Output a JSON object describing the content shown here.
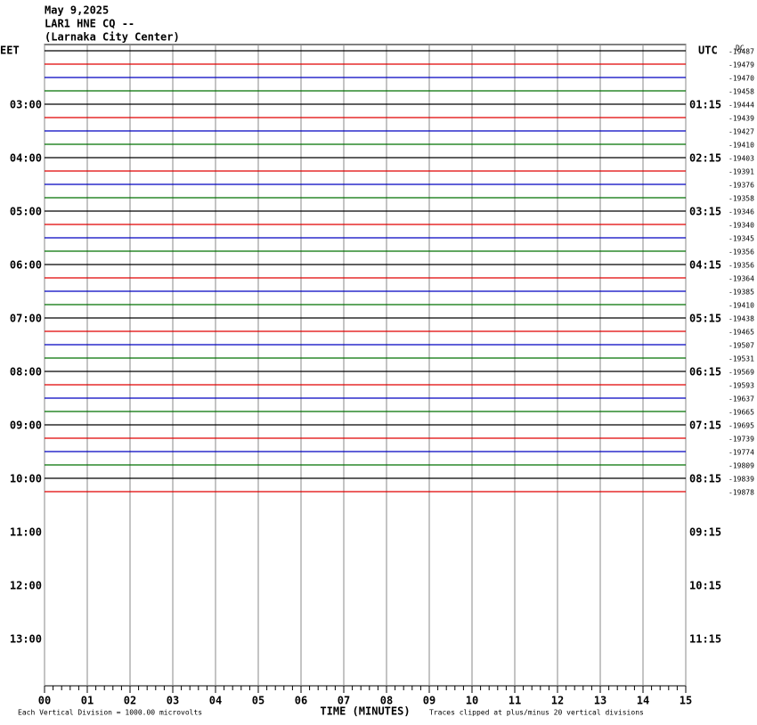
{
  "chart_data": {
    "type": "helicorder",
    "title_lines": [
      "May 9,2025",
      "LAR1 HNE CQ --",
      "(Larnaka City Center)"
    ],
    "left_zone": "EET",
    "right_zone": "UTC",
    "dc_header": "DC",
    "left_time_labels": [
      "03:00",
      "04:00",
      "05:00",
      "06:00",
      "07:00",
      "08:00",
      "09:00",
      "10:00",
      "11:00",
      "12:00",
      "13:00"
    ],
    "right_time_labels": [
      "01:15",
      "02:15",
      "03:15",
      "04:15",
      "05:15",
      "06:15",
      "07:15",
      "08:15",
      "09:15",
      "10:15",
      "11:15"
    ],
    "trace_offsets": [
      -19487,
      -19479,
      -19470,
      -19458,
      -19444,
      -19439,
      -19427,
      -19410,
      -19403,
      -19391,
      -19376,
      -19358,
      -19346,
      -19340,
      -19345,
      -19356,
      -19356,
      -19364,
      -19385,
      -19410,
      -19438,
      -19465,
      -19507,
      -19531,
      -19569,
      -19593,
      -19637,
      -19665,
      -19695,
      -19739,
      -19774,
      -19809,
      -19839,
      -19878
    ],
    "trace_colors": [
      "#000000",
      "#e00000",
      "#0000c0",
      "#007000"
    ],
    "xlabel": "TIME (MINUTES)",
    "xlim": [
      0,
      15
    ],
    "xticks": [
      {
        "value": 0,
        "label": "00"
      },
      {
        "value": 1,
        "label": "01"
      },
      {
        "value": 2,
        "label": "02"
      },
      {
        "value": 3,
        "label": "03"
      },
      {
        "value": 4,
        "label": "04"
      },
      {
        "value": 5,
        "label": "05"
      },
      {
        "value": 6,
        "label": "06"
      },
      {
        "value": 7,
        "label": "07"
      },
      {
        "value": 8,
        "label": "08"
      },
      {
        "value": 9,
        "label": "09"
      },
      10,
      11,
      12,
      13,
      14,
      15
    ],
    "scale_note": "Each Vertical Division = 1000.00 microvolts",
    "clip_note": "Traces clipped at plus/minus 20 vertical divisions"
  }
}
